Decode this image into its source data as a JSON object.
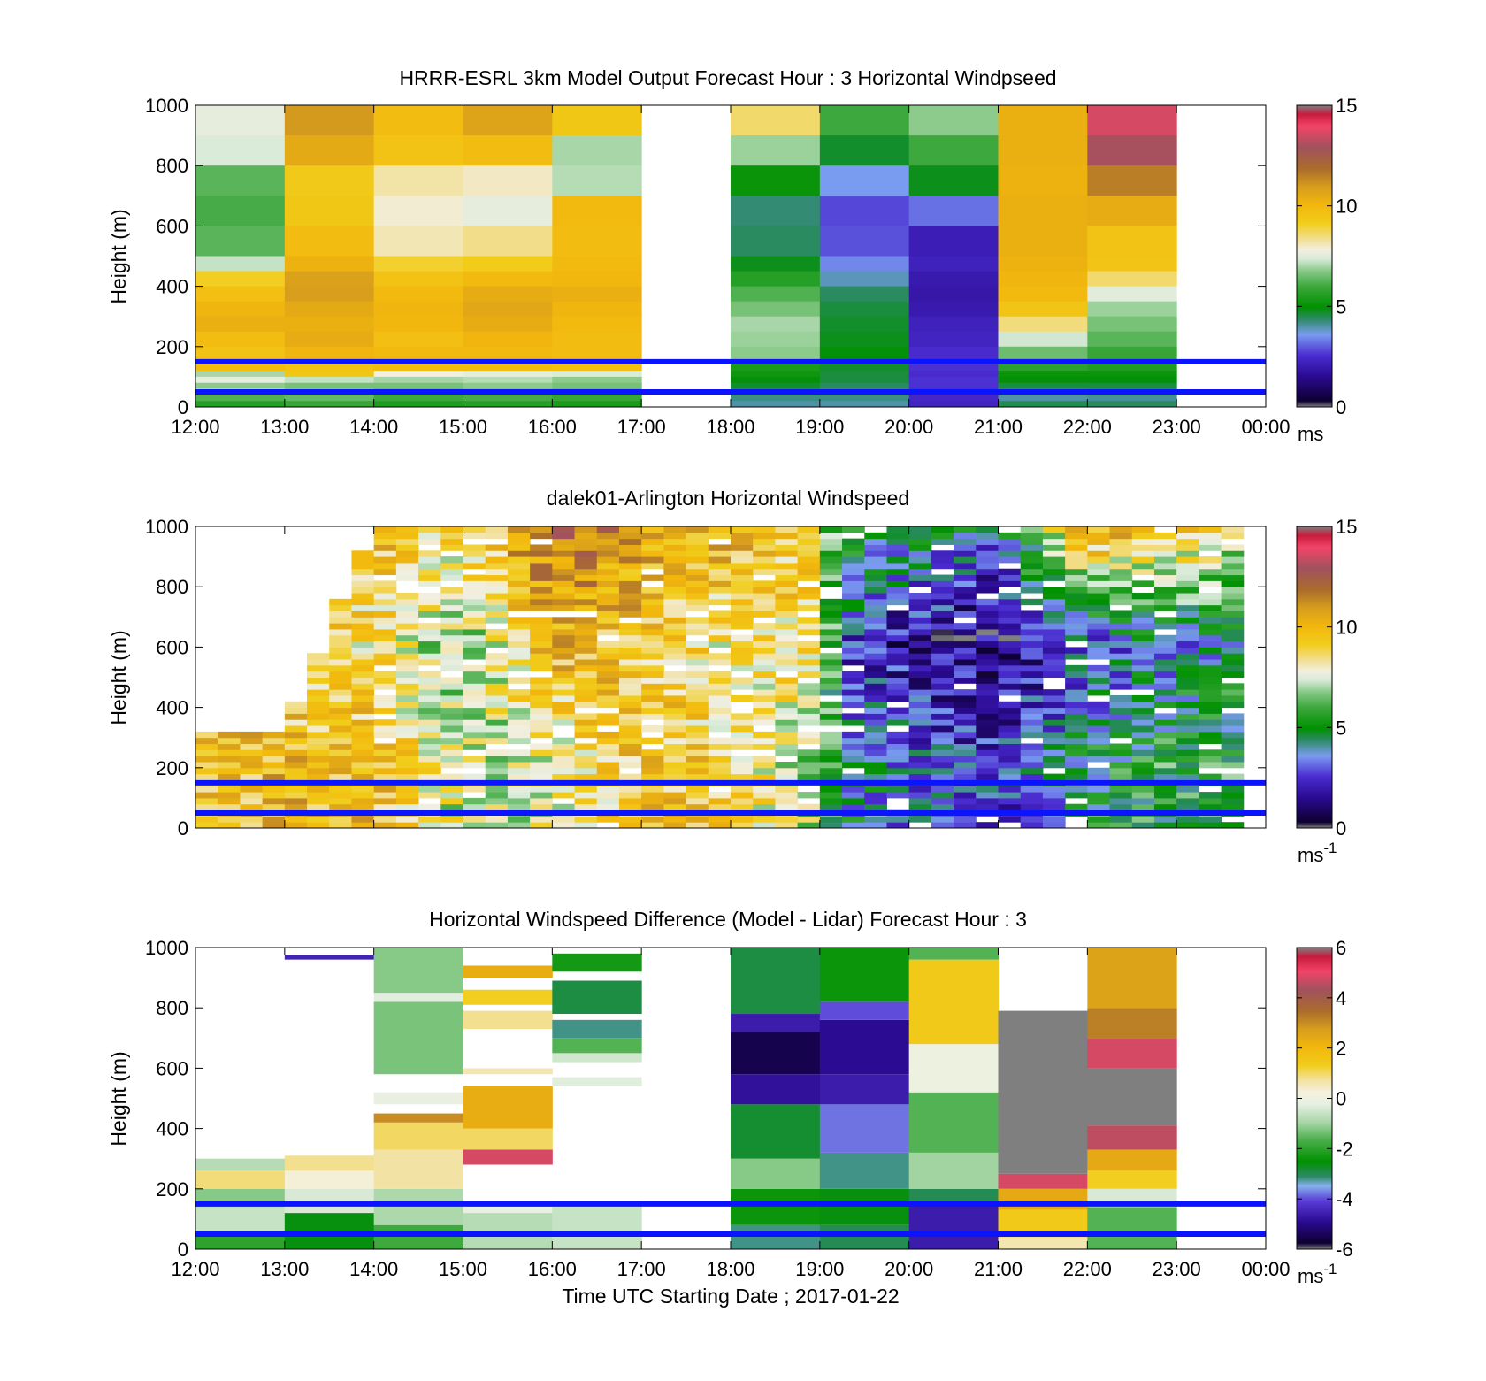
{
  "figure": {
    "xlabel": "Time UTC  Starting Date ; 2017-01-22"
  },
  "chart_data": [
    {
      "type": "heatmap",
      "title": "HRRR-ESRL 3km Model Output   Forecast Hour : 3 Horizontal Windpseed",
      "ylabel": "Height (m)",
      "xlim_hours": [
        12,
        24
      ],
      "ylim": [
        0,
        1000
      ],
      "yticks": [
        "0",
        "200",
        "400",
        "600",
        "800",
        "1000"
      ],
      "xticks": [
        "12:00",
        "13:00",
        "14:00",
        "15:00",
        "16:00",
        "17:00",
        "18:00",
        "19:00",
        "20:00",
        "21:00",
        "22:00",
        "23:00",
        "00:00"
      ],
      "colorbar": {
        "min": 0,
        "max": 15,
        "ticks": [
          "0",
          "5",
          "10",
          "15"
        ],
        "unit": "ms",
        "unit_sup": ""
      },
      "reference_heights": [
        150,
        50
      ],
      "levels_top": [
        1000,
        900,
        800,
        700,
        600,
        500,
        450,
        400,
        350,
        300,
        250,
        200,
        150,
        120,
        100,
        80,
        60,
        40,
        20
      ],
      "columns": [
        {
          "start": 12,
          "values": [
            7.6,
            7.4,
            6.3,
            6.1,
            6.3,
            7.2,
            9.1,
            9.7,
            10.1,
            10.3,
            9.8,
            9.6,
            9.8,
            7.0,
            7.6,
            6.8,
            7.3,
            6.2,
            5.6
          ]
        },
        {
          "start": 13,
          "values": [
            11.0,
            10.5,
            9.3,
            9.4,
            9.8,
            10.2,
            10.8,
            10.9,
            10.5,
            10.3,
            10.4,
            10.1,
            9.6,
            9.4,
            7.2,
            6.6,
            6.8,
            6.4,
            5.9
          ]
        },
        {
          "start": 14,
          "values": [
            9.8,
            9.6,
            8.2,
            7.9,
            8.1,
            9.0,
            9.6,
            9.9,
            10.1,
            10.0,
            9.7,
            9.9,
            9.8,
            7.8,
            7.0,
            6.6,
            6.3,
            6.0,
            5.5
          ]
        },
        {
          "start": 15,
          "values": [
            10.7,
            9.8,
            8.0,
            7.6,
            8.4,
            9.2,
            9.9,
            10.4,
            10.6,
            10.4,
            10.1,
            9.9,
            9.8,
            7.6,
            7.1,
            6.8,
            6.5,
            6.1,
            5.6
          ]
        },
        {
          "start": 16,
          "values": [
            9.4,
            7.0,
            7.1,
            9.9,
            9.8,
            9.9,
            10.0,
            10.3,
            10.1,
            9.9,
            9.8,
            9.8,
            9.7,
            7.4,
            6.8,
            6.6,
            6.3,
            5.9,
            5.4
          ]
        },
        {
          "start": 18,
          "values": [
            8.6,
            6.9,
            5.1,
            4.3,
            4.4,
            4.8,
            5.6,
            6.2,
            6.6,
            7.0,
            6.9,
            6.8,
            5.4,
            5.2,
            4.9,
            4.7,
            4.4,
            4.2,
            4.0
          ]
        },
        {
          "start": 19,
          "values": [
            6.0,
            4.7,
            3.6,
            2.8,
            2.9,
            3.4,
            3.9,
            4.4,
            4.6,
            4.7,
            4.8,
            4.9,
            4.7,
            4.6,
            4.6,
            4.4,
            4.2,
            4.2,
            4.0
          ]
        },
        {
          "start": 20,
          "values": [
            6.8,
            6.0,
            4.8,
            3.2,
            2.1,
            2.2,
            2.0,
            1.9,
            2.0,
            2.2,
            2.3,
            2.5,
            2.6,
            2.5,
            2.6,
            2.6,
            2.5,
            2.4,
            2.3
          ]
        },
        {
          "start": 21,
          "values": [
            10.3,
            10.3,
            10.2,
            10.3,
            10.3,
            10.2,
            10.1,
            9.9,
            9.5,
            8.5,
            7.3,
            6.5,
            5.7,
            5.1,
            4.9,
            4.6,
            4.2,
            4.0,
            4.5
          ]
        },
        {
          "start": 22,
          "values": [
            13.6,
            13.0,
            11.5,
            10.4,
            9.6,
            9.5,
            8.6,
            7.5,
            6.9,
            6.6,
            6.3,
            5.9,
            5.5,
            5.1,
            4.9,
            4.6,
            4.3,
            4.1,
            4.4
          ]
        }
      ]
    },
    {
      "type": "heatmap",
      "title": "dalek01-Arlington  Horizontal Windspeed",
      "ylabel": "Height (m)",
      "xlim_hours": [
        12,
        24
      ],
      "ylim": [
        0,
        1000
      ],
      "yticks": [
        "0",
        "200",
        "400",
        "600",
        "800",
        "1000"
      ],
      "xticks": [],
      "colorbar": {
        "min": 0,
        "max": 15,
        "ticks": [
          "0",
          "5",
          "10",
          "15"
        ],
        "unit": "ms",
        "unit_sup": "-1"
      },
      "reference_heights": [
        150,
        50
      ],
      "generated_profile": {
        "bin_hours": 0.25,
        "bin_height_m": 20,
        "keyframes": [
          {
            "t": 12.0,
            "low": 9.6,
            "mid": null,
            "high": null,
            "top_m": 300
          },
          {
            "t": 13.0,
            "low": 9.9,
            "mid": null,
            "high": null,
            "top_m": 320
          },
          {
            "t": 14.0,
            "low": 9.8,
            "mid": 8.6,
            "high": 9.9,
            "top_m": 1000
          },
          {
            "t": 15.0,
            "low": 7.4,
            "mid": 6.4,
            "high": 8.8,
            "top_m": 1000
          },
          {
            "t": 16.0,
            "low": 7.8,
            "mid": 10.2,
            "high": 11.8,
            "top_m": 1000
          },
          {
            "t": 17.0,
            "low": 9.6,
            "mid": 9.4,
            "high": 10.8,
            "top_m": 1000
          },
          {
            "t": 18.0,
            "low": 9.0,
            "mid": 8.2,
            "high": 10.2,
            "top_m": 1000
          },
          {
            "t": 19.0,
            "low": 6.8,
            "mid": 8.8,
            "high": 8.6,
            "top_m": 1000
          },
          {
            "t": 19.25,
            "low": 4.4,
            "mid": 2.8,
            "high": 5.2,
            "top_m": 1000
          },
          {
            "t": 20.0,
            "low": 3.6,
            "mid": 1.6,
            "high": 5.0,
            "top_m": 1000
          },
          {
            "t": 21.0,
            "low": 2.6,
            "mid": 1.0,
            "high": 3.8,
            "top_m": 1000
          },
          {
            "t": 22.0,
            "low": 4.8,
            "mid": 3.0,
            "high": 10.8,
            "top_m": 1000
          },
          {
            "t": 23.0,
            "low": 5.6,
            "mid": 3.6,
            "high": 10.0,
            "top_m": 1000
          },
          {
            "t": 23.75,
            "low": 5.4,
            "mid": 4.6,
            "high": 6.8,
            "top_m": 1000
          }
        ]
      }
    },
    {
      "type": "heatmap",
      "title": "Horizontal Windspeed Difference (Model - Lidar) Forecast Hour : 3",
      "ylabel": "Height (m)",
      "xlim_hours": [
        12,
        24
      ],
      "ylim": [
        0,
        1000
      ],
      "yticks": [
        "0",
        "200",
        "400",
        "600",
        "800",
        "1000"
      ],
      "xticks": [
        "12:00",
        "13:00",
        "14:00",
        "15:00",
        "16:00",
        "17:00",
        "18:00",
        "19:00",
        "20:00",
        "21:00",
        "22:00",
        "23:00",
        "00:00"
      ],
      "colorbar": {
        "min": -6,
        "max": 6,
        "ticks": [
          "-6",
          "-4",
          "-2",
          "0",
          "2",
          "4",
          "6"
        ],
        "unit": "ms",
        "unit_sup": "-1"
      },
      "reference_heights": [
        150,
        50
      ],
      "columns": [
        {
          "start": 12,
          "bands": [
            [
              0,
              60,
              -2.0
            ],
            [
              60,
              140,
              -0.6
            ],
            [
              140,
              200,
              -1.2
            ],
            [
              200,
              260,
              0.9
            ],
            [
              260,
              300,
              -0.8
            ]
          ]
        },
        {
          "start": 13,
          "bands": [
            [
              0,
              120,
              -2.6
            ],
            [
              120,
              200,
              -0.4
            ],
            [
              200,
              260,
              0.3
            ],
            [
              260,
              310,
              0.8
            ],
            [
              960,
              975,
              -4.5
            ]
          ]
        },
        {
          "start": 14,
          "bands": [
            [
              0,
              80,
              -1.8
            ],
            [
              80,
              200,
              -0.9
            ],
            [
              200,
              330,
              0.7
            ],
            [
              330,
              420,
              1.0
            ],
            [
              420,
              450,
              3.0
            ],
            [
              480,
              520,
              -0.1
            ],
            [
              580,
              820,
              -1.3
            ],
            [
              820,
              850,
              -0.3
            ],
            [
              850,
              1000,
              -1.2
            ]
          ]
        },
        {
          "start": 15,
          "bands": [
            [
              0,
              120,
              -0.8
            ],
            [
              120,
              160,
              -0.2
            ],
            [
              280,
              330,
              4.8
            ],
            [
              330,
              400,
              1.0
            ],
            [
              400,
              540,
              2.3
            ],
            [
              580,
              600,
              0.6
            ],
            [
              730,
              790,
              0.8
            ],
            [
              810,
              860,
              1.3
            ],
            [
              900,
              940,
              2.3
            ]
          ]
        },
        {
          "start": 16,
          "bands": [
            [
              0,
              160,
              -0.6
            ],
            [
              540,
              570,
              -0.3
            ],
            [
              620,
              650,
              -0.5
            ],
            [
              650,
              700,
              -1.6
            ],
            [
              700,
              760,
              -3.2
            ],
            [
              780,
              890,
              -2.9
            ],
            [
              920,
              980,
              -2.3
            ]
          ]
        },
        {
          "start": 18,
          "bands": [
            [
              0,
              80,
              -3.2
            ],
            [
              80,
              200,
              -2.4
            ],
            [
              200,
              300,
              -1.2
            ],
            [
              300,
              480,
              -2.8
            ],
            [
              480,
              580,
              -4.8
            ],
            [
              580,
              720,
              -5.5
            ],
            [
              720,
              780,
              -4.6
            ],
            [
              780,
              1000,
              -2.9
            ]
          ]
        },
        {
          "start": 19,
          "bands": [
            [
              0,
              80,
              -3.0
            ],
            [
              80,
              200,
              -2.6
            ],
            [
              200,
              320,
              -3.2
            ],
            [
              320,
              480,
              -3.8
            ],
            [
              480,
              580,
              -4.6
            ],
            [
              580,
              760,
              -4.9
            ],
            [
              760,
              820,
              -4.0
            ],
            [
              820,
              1000,
              -2.4
            ]
          ]
        },
        {
          "start": 20,
          "bands": [
            [
              0,
              160,
              -4.6
            ],
            [
              160,
              200,
              -3.0
            ],
            [
              200,
              320,
              -1.0
            ],
            [
              320,
              520,
              -1.6
            ],
            [
              520,
              680,
              0.0
            ],
            [
              680,
              960,
              1.4
            ],
            [
              960,
              1000,
              -1.6
            ]
          ]
        },
        {
          "start": 21,
          "bands": [
            [
              0,
              40,
              0.6
            ],
            [
              40,
              130,
              1.4
            ],
            [
              130,
              200,
              2.4
            ],
            [
              200,
              250,
              4.8
            ],
            [
              250,
              790,
              7.0
            ]
          ]
        },
        {
          "start": 22,
          "bands": [
            [
              0,
              140,
              -1.6
            ],
            [
              140,
              200,
              -0.4
            ],
            [
              200,
              260,
              1.3
            ],
            [
              260,
              330,
              2.4
            ],
            [
              330,
              410,
              4.6
            ],
            [
              410,
              600,
              7.0
            ],
            [
              600,
              700,
              4.8
            ],
            [
              700,
              800,
              3.2
            ],
            [
              800,
              1000,
              2.6
            ]
          ]
        }
      ]
    }
  ]
}
